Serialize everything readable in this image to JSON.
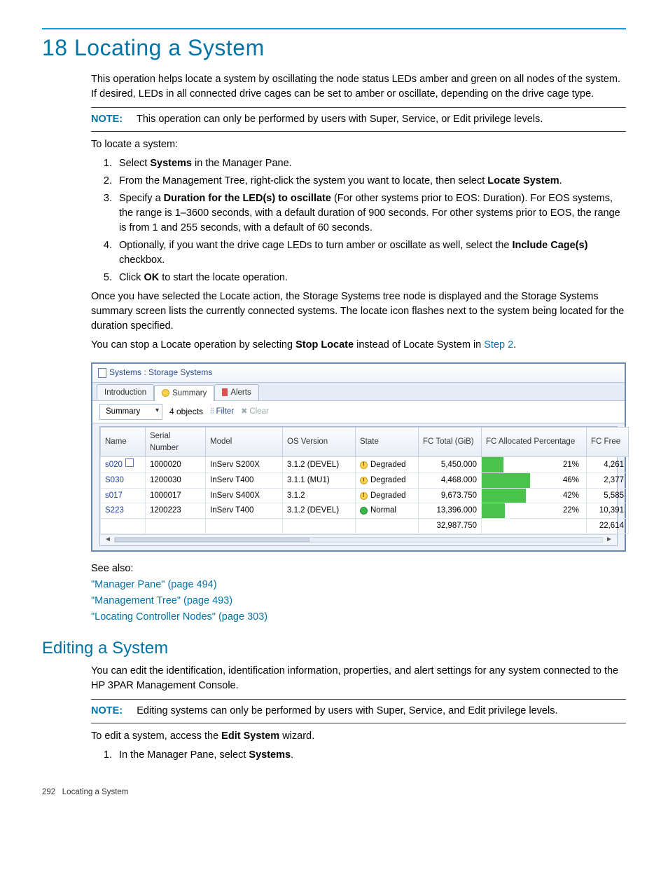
{
  "header": {
    "chapter_title": "18 Locating a System",
    "intro": "This operation helps locate a system by oscillating the node status LEDs amber and green on all nodes of the system. If desired, LEDs in all connected drive cages can be set to amber or oscillate, depending on the drive cage type.",
    "note_label": "NOTE:",
    "note_text": "This operation can only be performed by users with Super, Service, or Edit privilege levels.",
    "to_locate": "To locate a system:"
  },
  "steps": {
    "s1_a": "Select ",
    "s1_b": "Systems",
    "s1_c": " in the Manager Pane.",
    "s2_a": "From the Management Tree, right-click the system you want to locate, then select ",
    "s2_b": "Locate System",
    "s2_c": ".",
    "s3_a": "Specify a ",
    "s3_b": "Duration for the LED(s) to oscillate",
    "s3_c": " (For other systems prior to EOS: Duration). For EOS systems, the range is 1–3600 seconds, with a default duration of 900 seconds. For other systems prior to EOS, the range is from 1 and 255 seconds, with a default of 60 seconds.",
    "s4_a": "Optionally, if you want the drive cage LEDs to turn amber or oscillate as well, select the ",
    "s4_b": "Include Cage(s)",
    "s4_c": " checkbox.",
    "s5_a": "Click ",
    "s5_b": "OK",
    "s5_c": " to start the locate operation."
  },
  "after": {
    "p1": "Once you have selected the Locate action, the Storage Systems tree node is displayed and the Storage Systems summary screen lists the currently connected systems. The locate icon flashes next to the system being located for the duration specified.",
    "p2_a": "You can stop a Locate operation by selecting ",
    "p2_b": "Stop Locate",
    "p2_c": " instead of Locate System in ",
    "p2_link": "Step 2",
    "p2_d": "."
  },
  "screenshot": {
    "titlebar": "Systems : Storage Systems",
    "tabs": {
      "intro": "Introduction",
      "summary": "Summary",
      "alerts": "Alerts"
    },
    "toolbar": {
      "dropdown": "Summary",
      "objects": "4 objects",
      "filter": "Filter",
      "clear": "Clear"
    },
    "columns": {
      "name": "Name",
      "serial": "Serial Number",
      "model": "Model",
      "os": "OS Version",
      "state": "State",
      "fctotal": "FC Total (GiB)",
      "fcalloc": "FC Allocated Percentage",
      "fcfree": "FC Free"
    },
    "col_widths": {
      "name": "64px",
      "serial": "86px",
      "model": "110px",
      "os": "104px",
      "state": "90px",
      "fctotal": "90px",
      "fcalloc": "150px",
      "fcfree": "60px"
    },
    "header_bg_from": "#fbfcfe",
    "header_bg_to": "#e8edf5",
    "border_color": "#a8b8ce",
    "bar_color": "#4bc24b",
    "name_link_color": "#1a3f9c",
    "rows": [
      {
        "name": "s020",
        "has_locate_icon": true,
        "serial": "1000020",
        "model": "InServ S200X",
        "os": "3.1.2 (DEVEL)",
        "state": "Degraded",
        "state_kind": "degraded",
        "fctotal": "5,450.000",
        "fcalloc_pct": 21,
        "fcalloc_label": "21%",
        "fcfree": "4,261"
      },
      {
        "name": "S030",
        "has_locate_icon": false,
        "serial": "1200030",
        "model": "InServ T400",
        "os": "3.1.1 (MU1)",
        "state": "Degraded",
        "state_kind": "degraded",
        "fctotal": "4,468.000",
        "fcalloc_pct": 46,
        "fcalloc_label": "46%",
        "fcfree": "2,377"
      },
      {
        "name": "s017",
        "has_locate_icon": false,
        "serial": "1000017",
        "model": "InServ S400X",
        "os": "3.1.2",
        "state": "Degraded",
        "state_kind": "degraded",
        "fctotal": "9,673.750",
        "fcalloc_pct": 42,
        "fcalloc_label": "42%",
        "fcfree": "5,585"
      },
      {
        "name": "S223",
        "has_locate_icon": false,
        "serial": "1200223",
        "model": "InServ T400",
        "os": "3.1.2 (DEVEL)",
        "state": "Normal",
        "state_kind": "normal",
        "fctotal": "13,396.000",
        "fcalloc_pct": 22,
        "fcalloc_label": "22%",
        "fcfree": "10,391"
      }
    ],
    "totals": {
      "fctotal": "32,987.750",
      "fcfree": "22,614"
    }
  },
  "see_also": {
    "label": "See also:",
    "l1": "\"Manager Pane\" (page 494)",
    "l2": "\"Management Tree\" (page 493)",
    "l3": "\"Locating Controller Nodes\" (page 303)"
  },
  "edit_section": {
    "title": "Editing a System",
    "intro": "You can edit the identification, identification information, properties, and alert settings for any system connected to the HP 3PAR Management Console.",
    "note_label": "NOTE:",
    "note_text": "Editing systems can only be performed by users with Super, Service, and Edit privilege levels.",
    "to_edit_a": "To edit a system, access the ",
    "to_edit_b": "Edit System",
    "to_edit_c": " wizard.",
    "step1_a": "In the Manager Pane, select ",
    "step1_b": "Systems",
    "step1_c": "."
  },
  "footer": {
    "page_num": "292",
    "page_label": "Locating a System"
  }
}
